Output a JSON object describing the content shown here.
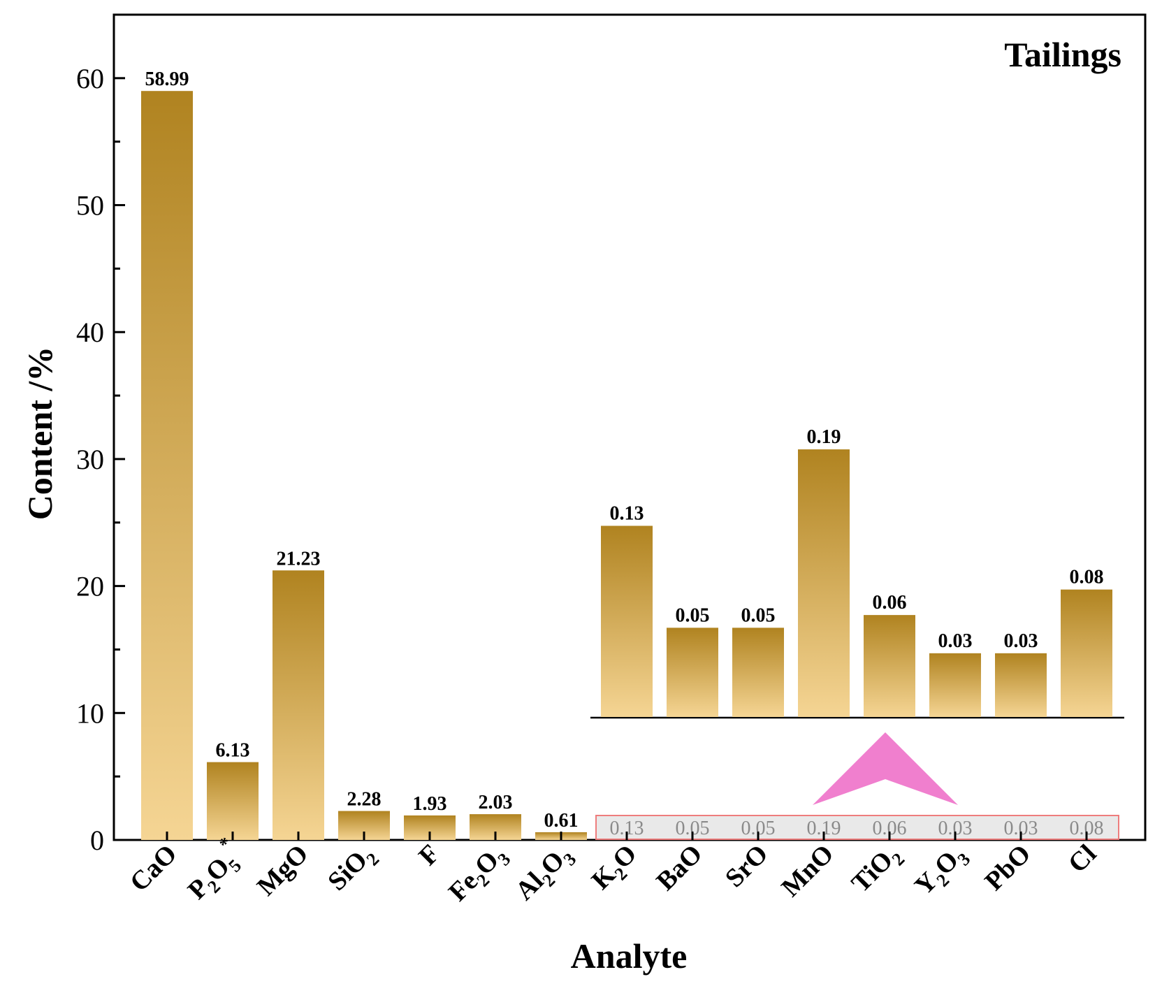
{
  "colors": {
    "bar_top": "#b08320",
    "bar_bottom": "#f5d594",
    "arrow": "#f07fce",
    "strip_fill": "#e9e9e9",
    "strip_border": "#ee7d7d",
    "axis": "#000000"
  },
  "chart_data": {
    "type": "bar",
    "title": "Tailings",
    "xlabel": "Analyte",
    "ylabel": "Content /%",
    "ylim": [
      0,
      65
    ],
    "yticks": [
      0,
      10,
      20,
      30,
      40,
      50,
      60
    ],
    "grid": false,
    "categories": [
      {
        "base": "CaO",
        "sub": "",
        "tail": "",
        "sup": ""
      },
      {
        "base": "P",
        "sub": "2",
        "tail": "O",
        "sub2": "5",
        "sup": "*"
      },
      {
        "base": "MgO",
        "sub": "",
        "tail": "",
        "sup": ""
      },
      {
        "base": "SiO",
        "sub": "2",
        "tail": "",
        "sup": ""
      },
      {
        "base": "F",
        "sub": "",
        "tail": "",
        "sup": ""
      },
      {
        "base": "Fe",
        "sub": "2",
        "tail": "O",
        "sub2": "3",
        "sup": ""
      },
      {
        "base": "Al",
        "sub": "2",
        "tail": "O",
        "sub2": "3",
        "sup": ""
      },
      {
        "base": "K",
        "sub": "2",
        "tail": "O",
        "sup": ""
      },
      {
        "base": "BaO",
        "sub": "",
        "tail": "",
        "sup": ""
      },
      {
        "base": "SrO",
        "sub": "",
        "tail": "",
        "sup": ""
      },
      {
        "base": "MnO",
        "sub": "",
        "tail": "",
        "sup": ""
      },
      {
        "base": "TiO",
        "sub": "2",
        "tail": "",
        "sup": ""
      },
      {
        "base": "Y",
        "sub": "2",
        "tail": "O",
        "sub2": "3",
        "sup": ""
      },
      {
        "base": "PbO",
        "sub": "",
        "tail": "",
        "sup": ""
      },
      {
        "base": "Cl",
        "sub": "",
        "tail": "",
        "sup": ""
      }
    ],
    "values": [
      58.99,
      6.13,
      21.23,
      2.28,
      1.93,
      2.03,
      0.61,
      0.13,
      0.05,
      0.05,
      0.19,
      0.06,
      0.03,
      0.03,
      0.08
    ],
    "labels": [
      "58.99",
      "6.13",
      "21.23",
      "2.28",
      "1.93",
      "2.03",
      "0.61",
      "0.13",
      "0.05",
      "0.05",
      "0.19",
      "0.06",
      "0.03",
      "0.03",
      "0.08"
    ],
    "inset": {
      "description": "magnified view of minor analytes K2O through Cl",
      "start_index": 7,
      "end_index": 14,
      "ylim": [
        0,
        0.23
      ]
    }
  }
}
